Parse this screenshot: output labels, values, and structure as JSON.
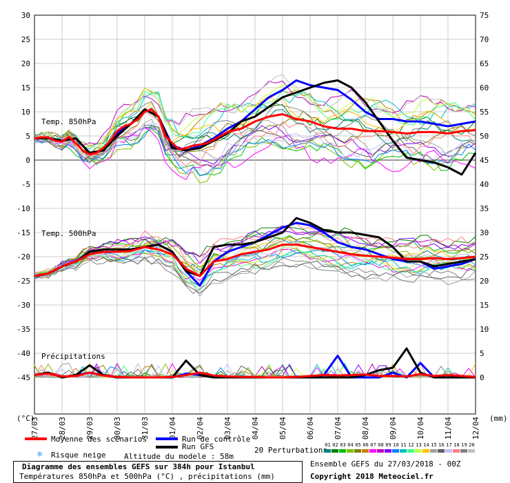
{
  "chart_data": {
    "type": "line",
    "title": "Diagramme des ensembles GEFS sur 384h pour Istanbul",
    "subtitle": "Températures 850hPa et 500hPa (°C) , précipitations (mm)",
    "x_tick_labels": [
      "27/03",
      "28/03",
      "29/03",
      "30/03",
      "31/03",
      "01/04",
      "02/04",
      "03/04",
      "04/04",
      "05/04",
      "06/04",
      "07/04",
      "08/04",
      "09/04",
      "10/04",
      "11/04",
      "12/04"
    ],
    "left_axis": {
      "label": "(°C)",
      "min": -45,
      "max": 30,
      "ticks": [
        30,
        25,
        20,
        15,
        10,
        5,
        0,
        -5,
        -10,
        -15,
        -20,
        -25,
        -30,
        -35,
        -40,
        -45
      ]
    },
    "right_axis": {
      "label": "(mm)",
      "ticks": [
        75,
        70,
        65,
        60,
        55,
        50,
        45,
        40,
        35,
        30,
        25,
        20,
        15,
        10,
        5,
        0
      ]
    },
    "panel_labels": {
      "t850": "Temp. 850hPa",
      "t500": "Temp. 500hPa",
      "precip": "Précipitations"
    },
    "series": [
      {
        "name": "Moyenne des scénarios",
        "color": "#ff0000",
        "panel": "t850",
        "x": [
          0,
          0.25,
          0.5,
          0.75,
          1,
          1.25,
          1.5,
          1.75,
          2,
          2.25,
          2.5,
          2.75,
          3,
          3.25,
          3.5,
          3.75,
          4,
          4.25,
          4.5,
          4.75,
          5,
          5.25,
          5.5,
          5.75,
          6,
          6.25,
          6.5,
          6.75,
          7,
          7.5,
          8,
          8.5,
          9,
          9.5,
          10,
          10.5,
          11,
          11.5,
          12,
          12.5,
          13,
          13.5,
          14,
          14.5,
          15,
          15.5,
          16
        ],
        "values": [
          4.5,
          4.7,
          4.7,
          4.0,
          3.8,
          4.8,
          3.5,
          2.0,
          1.2,
          1.5,
          2.5,
          4.0,
          6.0,
          7.0,
          7.5,
          8.5,
          10.0,
          10.5,
          9.0,
          5.0,
          3.5,
          2.2,
          2.5,
          3.0,
          3.2,
          3.5,
          4.2,
          5.0,
          5.8,
          6.5,
          8.0,
          9.0,
          9.5,
          8.5,
          8.0,
          7.0,
          6.5,
          6.5,
          6.0,
          6.0,
          5.8,
          5.5,
          5.8,
          5.8,
          5.5,
          6.0,
          6.2
        ]
      },
      {
        "name": "Run de contrôle",
        "color": "#0000ff",
        "panel": "t850",
        "x": [
          0,
          0.5,
          1,
          1.5,
          2,
          2.5,
          3,
          3.5,
          4,
          4.5,
          5,
          5.5,
          6,
          6.5,
          7,
          7.5,
          8,
          8.5,
          9,
          9.5,
          10,
          10.5,
          11,
          11.5,
          12,
          12.5,
          13,
          13.5,
          14,
          14.5,
          15,
          15.5,
          16
        ],
        "values": [
          4.5,
          4.6,
          4.0,
          4.5,
          1.5,
          2.0,
          5.5,
          7.5,
          10.5,
          9.0,
          3.0,
          2.0,
          3.0,
          4.5,
          6.5,
          8.0,
          10.5,
          13.0,
          14.5,
          16.5,
          15.5,
          15.0,
          14.5,
          12.5,
          10.0,
          8.5,
          8.5,
          8.0,
          8.0,
          7.5,
          7.0,
          7.5,
          8.0
        ]
      },
      {
        "name": "Run GFS",
        "color": "#000000",
        "panel": "t850",
        "x": [
          0,
          0.5,
          1,
          1.5,
          2,
          2.5,
          3,
          3.5,
          4,
          4.5,
          5,
          5.5,
          6,
          6.5,
          7,
          7.5,
          8,
          8.5,
          9,
          9.5,
          10,
          10.5,
          11,
          11.5,
          12,
          12.5,
          13,
          13.5,
          14,
          14.5,
          15,
          15.5,
          16
        ],
        "values": [
          4.5,
          4.5,
          4.0,
          4.5,
          1.5,
          2.0,
          5.0,
          7.5,
          10.5,
          9.0,
          2.5,
          2.0,
          2.5,
          4.0,
          5.5,
          8.0,
          9.0,
          11.0,
          13.0,
          14.0,
          15.0,
          16.0,
          16.5,
          15.0,
          12.0,
          8.0,
          4.0,
          0.5,
          0.0,
          -0.5,
          -1.5,
          -3.0,
          1.5
        ]
      },
      {
        "name": "Moyenne des scénarios",
        "color": "#ff0000",
        "panel": "t500",
        "x": [
          0,
          0.5,
          1,
          1.5,
          2,
          2.5,
          3,
          3.5,
          4,
          4.5,
          5,
          5.5,
          6,
          6.5,
          7,
          7.5,
          8,
          8.5,
          9,
          9.5,
          10,
          10.5,
          11,
          11.5,
          12,
          12.5,
          13,
          13.5,
          14,
          14.5,
          15,
          15.5,
          16
        ],
        "values": [
          -24,
          -23.5,
          -22,
          -21,
          -19.5,
          -19.0,
          -19,
          -18.8,
          -18,
          -18.5,
          -19.5,
          -22.5,
          -24,
          -21,
          -20.5,
          -19.5,
          -19.0,
          -18.5,
          -17.5,
          -17.5,
          -18,
          -18.5,
          -19.0,
          -19.5,
          -19.8,
          -20,
          -20.2,
          -20.5,
          -20.5,
          -20.3,
          -20.5,
          -20.3,
          -20.0
        ]
      },
      {
        "name": "Run de contrôle",
        "color": "#0000ff",
        "panel": "t500",
        "x": [
          0,
          0.5,
          1,
          1.5,
          2,
          2.5,
          3,
          3.5,
          4,
          4.5,
          5,
          5.5,
          6,
          6.5,
          7,
          7.5,
          8,
          8.5,
          9,
          9.5,
          10,
          10.5,
          11,
          11.5,
          12,
          12.5,
          13,
          13.5,
          14,
          14.5,
          15,
          15.5,
          16
        ],
        "values": [
          -24,
          -23.5,
          -22,
          -21,
          -19.0,
          -18.5,
          -18.5,
          -18.5,
          -18,
          -17.5,
          -19,
          -23,
          -26,
          -21,
          -19,
          -18,
          -17,
          -15.5,
          -14.0,
          -13,
          -13.5,
          -15,
          -17,
          -18,
          -18.5,
          -19.5,
          -20.5,
          -21.0,
          -21.0,
          -22.5,
          -22.0,
          -21.5,
          -20.5
        ]
      },
      {
        "name": "Run GFS",
        "color": "#000000",
        "panel": "t500",
        "x": [
          0,
          0.5,
          1,
          1.5,
          2,
          2.5,
          3,
          3.5,
          4,
          4.5,
          5,
          5.5,
          6,
          6.5,
          7,
          7.5,
          8,
          8.5,
          9,
          9.5,
          10,
          10.5,
          11,
          11.5,
          12,
          12.5,
          13,
          13.5,
          14,
          14.5,
          15,
          15.5,
          16
        ],
        "values": [
          -24,
          -23.5,
          -22,
          -21,
          -19.0,
          -18.5,
          -18.5,
          -18.5,
          -18,
          -17.5,
          -19,
          -23,
          -24,
          -18,
          -17.5,
          -17.5,
          -17,
          -16,
          -15,
          -12,
          -13,
          -14.5,
          -15,
          -15,
          -15.5,
          -16,
          -18,
          -21,
          -21,
          -22,
          -21.5,
          -21.0,
          -20.5
        ]
      },
      {
        "name": "Moyenne des scénarios",
        "color": "#ff0000",
        "panel": "precip",
        "x": [
          0,
          0.5,
          1,
          1.5,
          2,
          2.5,
          3,
          3.5,
          4,
          4.5,
          5,
          5.5,
          6,
          6.5,
          7,
          7.5,
          8,
          8.5,
          9,
          9.5,
          10,
          10.5,
          11,
          11.5,
          12,
          12.5,
          13,
          13.5,
          14,
          14.5,
          15,
          15.5,
          16
        ],
        "values": [
          0.5,
          0.8,
          0.2,
          0.3,
          1.0,
          0.4,
          0.1,
          0,
          0,
          0,
          0.1,
          0.5,
          1.0,
          0.4,
          0.2,
          0.1,
          0.1,
          0,
          0,
          0.1,
          0.3,
          0.5,
          0.4,
          0.5,
          0.6,
          0.3,
          0.3,
          0.2,
          0.7,
          0.3,
          0.5,
          0.3,
          0.1
        ]
      },
      {
        "name": "Run de contrôle",
        "color": "#0000ff",
        "panel": "precip",
        "x": [
          0,
          0.5,
          1,
          1.5,
          2,
          2.5,
          3,
          3.5,
          4,
          4.5,
          5,
          5.5,
          6,
          6.5,
          7,
          7.5,
          8,
          8.5,
          9,
          9.5,
          10,
          10.5,
          11,
          11.5,
          12,
          12.5,
          13,
          13.5,
          14,
          14.5,
          15,
          15.5,
          16
        ],
        "values": [
          0.5,
          1,
          0,
          0.5,
          1.0,
          0.5,
          0,
          0,
          0,
          0,
          0,
          0.8,
          0.5,
          0,
          0,
          0,
          0,
          0,
          0,
          0,
          0,
          0.5,
          4.5,
          0,
          0,
          0,
          1,
          0,
          3,
          0,
          0,
          0,
          0
        ]
      },
      {
        "name": "Run GFS",
        "color": "#000000",
        "panel": "precip",
        "x": [
          0,
          0.5,
          1,
          1.5,
          2,
          2.5,
          3,
          3.5,
          4,
          4.5,
          5,
          5.5,
          6,
          6.5,
          7,
          7.5,
          8,
          8.5,
          9,
          9.5,
          10,
          10.5,
          11,
          11.5,
          12,
          12.5,
          13,
          13.5,
          14,
          14.5,
          15,
          15.5,
          16
        ],
        "values": [
          0.5,
          1,
          0,
          0.5,
          2.5,
          0.5,
          0,
          0,
          0,
          0,
          0,
          3.5,
          0.5,
          0,
          0,
          0,
          0,
          0,
          0,
          0,
          0,
          0,
          0,
          0,
          0.5,
          1.5,
          2.0,
          6.0,
          1,
          0,
          0,
          0,
          0
        ]
      }
    ]
  },
  "legend": {
    "mean": "Moyenne des scénarios",
    "control": "Run de contrôle",
    "gfs": "Run GFS",
    "snow": "Risque neige",
    "altitude": "Altitude du modele : 58m",
    "perturbations": "20 Perturbations",
    "perturbation_numbers": [
      "01",
      "02",
      "03",
      "04",
      "05",
      "06",
      "07",
      "08",
      "09",
      "10",
      "11",
      "12",
      "13",
      "14",
      "15",
      "16",
      "17",
      "18",
      "19",
      "20"
    ],
    "perturbation_colors": [
      "#008080",
      "#008000",
      "#00c000",
      "#80c000",
      "#808000",
      "#c08000",
      "#ff00ff",
      "#c000c0",
      "#8000ff",
      "#0080ff",
      "#00c0c0",
      "#40ff80",
      "#c0ff40",
      "#ffc000",
      "#a0a0a0",
      "#606060",
      "#c0c0ff",
      "#ff8080",
      "#808080",
      "#c0c0c0"
    ],
    "snow_icon": "snowflake-icon"
  },
  "footer": {
    "ensemble": "Ensemble GEFS du 27/03/2018 - 00Z",
    "copyright": "Copyright 2018 Meteociel.fr"
  }
}
